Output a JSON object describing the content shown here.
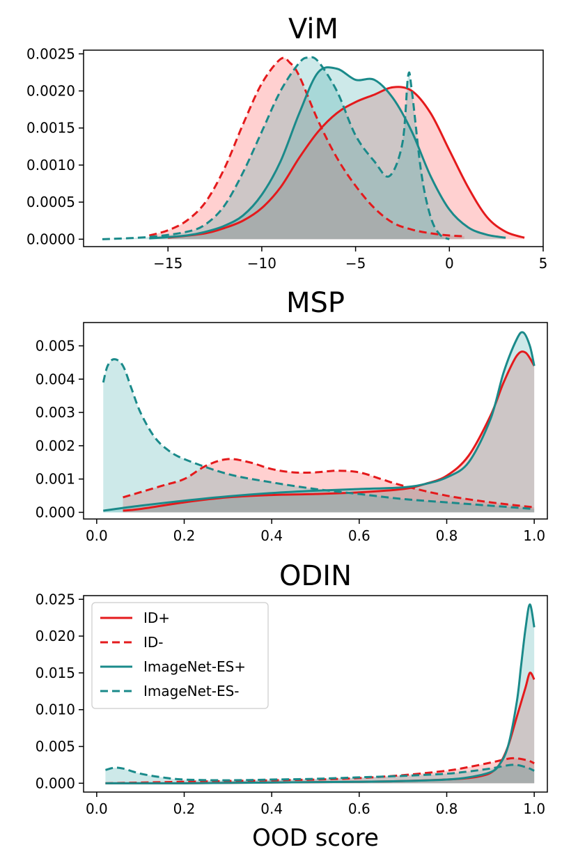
{
  "colors": {
    "id": "#e41a1c",
    "imagenet": "#1a8a8a"
  },
  "legend": [
    {
      "label": "ID+",
      "color": "#e41a1c",
      "dash": false
    },
    {
      "label": "ID-",
      "color": "#e41a1c",
      "dash": true
    },
    {
      "label": "ImageNet-ES+",
      "color": "#1a8a8a",
      "dash": false
    },
    {
      "label": "ImageNet-ES-",
      "color": "#1a8a8a",
      "dash": true
    }
  ],
  "chart_data": [
    {
      "type": "area",
      "title": "ViM",
      "xlabel": "",
      "ylabel": "",
      "xlim": [
        -19.5,
        5.0
      ],
      "ylim": [
        -0.0001,
        0.00255
      ],
      "xticks": [
        -15,
        -10,
        -5,
        0,
        5
      ],
      "xtick_labels": [
        "−15",
        "−10",
        "−5",
        "0",
        "5"
      ],
      "yticks": [
        0.0,
        0.0005,
        0.001,
        0.0015,
        0.002,
        0.0025
      ],
      "ytick_labels": [
        "0.0000",
        "0.0005",
        "0.0010",
        "0.0015",
        "0.0020",
        "0.0025"
      ],
      "series": [
        {
          "name": "ID+",
          "x": [
            -15,
            -13,
            -12,
            -11,
            -10,
            -9,
            -8,
            -7,
            -6,
            -5,
            -4,
            -3,
            -2,
            -1,
            0,
            1,
            2,
            3,
            4
          ],
          "values": [
            2e-05,
            8e-05,
            0.00015,
            0.00025,
            0.00042,
            0.0007,
            0.0011,
            0.00145,
            0.0017,
            0.00185,
            0.00195,
            0.00205,
            0.002,
            0.0017,
            0.0012,
            0.0007,
            0.0003,
            0.0001,
            2e-05
          ]
        },
        {
          "name": "ID-",
          "x": [
            -16,
            -15,
            -14,
            -13,
            -12,
            -11,
            -10,
            -9,
            -8.5,
            -8,
            -7,
            -6,
            -5,
            -4,
            -3,
            -2,
            -1,
            0,
            0.8
          ],
          "values": [
            5e-05,
            0.00012,
            0.00025,
            0.0005,
            0.00095,
            0.00155,
            0.0021,
            0.00243,
            0.00238,
            0.0022,
            0.0016,
            0.0011,
            0.00072,
            0.00042,
            0.00022,
            0.00013,
            8e-05,
            5e-05,
            4e-05
          ]
        },
        {
          "name": "ImageNet-ES+",
          "x": [
            -16,
            -14,
            -13,
            -12,
            -11,
            -10,
            -9,
            -8,
            -7,
            -6,
            -5,
            -4,
            -3,
            -2,
            -1,
            0,
            1,
            2,
            3
          ],
          "values": [
            1e-05,
            5e-05,
            0.0001,
            0.00018,
            0.00032,
            0.0006,
            0.00105,
            0.0017,
            0.00225,
            0.0023,
            0.00215,
            0.00215,
            0.0019,
            0.00145,
            0.00085,
            0.0004,
            0.00016,
            6e-05,
            2e-05
          ]
        },
        {
          "name": "ImageNet-ES-",
          "x": [
            -18.5,
            -16,
            -14,
            -13,
            -12,
            -11,
            -10,
            -9,
            -8,
            -7.5,
            -7,
            -6,
            -5,
            -4,
            -3.2,
            -2.5,
            -2.2,
            -2,
            -1.5,
            -1,
            -0.5,
            0
          ],
          "values": [
            0.0,
            3e-05,
            0.0001,
            0.0002,
            0.00045,
            0.0009,
            0.00145,
            0.002,
            0.00238,
            0.00245,
            0.0024,
            0.002,
            0.0014,
            0.00105,
            0.00085,
            0.0013,
            0.0022,
            0.002,
            0.0009,
            0.0003,
            6e-05,
            0.0
          ]
        }
      ]
    },
    {
      "type": "area",
      "title": "MSP",
      "xlabel": "",
      "ylabel": "",
      "xlim": [
        -0.03,
        1.03
      ],
      "ylim": [
        -0.0002,
        0.0057
      ],
      "xticks": [
        0.0,
        0.2,
        0.4,
        0.6,
        0.8,
        1.0
      ],
      "xtick_labels": [
        "0.0",
        "0.2",
        "0.4",
        "0.6",
        "0.8",
        "1.0"
      ],
      "yticks": [
        0.0,
        0.001,
        0.002,
        0.003,
        0.004,
        0.005
      ],
      "ytick_labels": [
        "0.000",
        "0.001",
        "0.002",
        "0.003",
        "0.004",
        "0.005"
      ],
      "series": [
        {
          "name": "ID+",
          "x": [
            0.06,
            0.1,
            0.2,
            0.3,
            0.4,
            0.5,
            0.6,
            0.7,
            0.75,
            0.8,
            0.85,
            0.9,
            0.93,
            0.96,
            0.98,
            1.0
          ],
          "values": [
            5e-05,
            0.0001,
            0.0003,
            0.00045,
            0.00052,
            0.00055,
            0.0006,
            0.0007,
            0.00085,
            0.0011,
            0.0017,
            0.0029,
            0.0039,
            0.0047,
            0.0048,
            0.0044
          ]
        },
        {
          "name": "ID-",
          "x": [
            0.06,
            0.15,
            0.2,
            0.25,
            0.3,
            0.35,
            0.4,
            0.45,
            0.5,
            0.55,
            0.6,
            0.65,
            0.7,
            0.8,
            0.9,
            1.0
          ],
          "values": [
            0.00045,
            0.0008,
            0.001,
            0.0014,
            0.0016,
            0.0015,
            0.0013,
            0.0012,
            0.0012,
            0.00125,
            0.0012,
            0.001,
            0.0008,
            0.0005,
            0.0003,
            0.00015
          ]
        },
        {
          "name": "ImageNet-ES+",
          "x": [
            0.015,
            0.1,
            0.2,
            0.3,
            0.4,
            0.5,
            0.6,
            0.7,
            0.75,
            0.8,
            0.85,
            0.9,
            0.93,
            0.96,
            0.975,
            0.99,
            1.0
          ],
          "values": [
            5e-05,
            0.0002,
            0.00035,
            0.00048,
            0.00058,
            0.00065,
            0.0007,
            0.00075,
            0.00085,
            0.00105,
            0.0015,
            0.0028,
            0.0042,
            0.0052,
            0.0054,
            0.005,
            0.0044
          ]
        },
        {
          "name": "ImageNet-ES-",
          "x": [
            0.015,
            0.025,
            0.04,
            0.06,
            0.08,
            0.1,
            0.13,
            0.16,
            0.2,
            0.3,
            0.4,
            0.5,
            0.6,
            0.7,
            0.8,
            0.9,
            1.0
          ],
          "values": [
            0.0039,
            0.0044,
            0.0046,
            0.0044,
            0.0037,
            0.003,
            0.0023,
            0.0019,
            0.0016,
            0.00115,
            0.0009,
            0.0007,
            0.00055,
            0.0004,
            0.0003,
            0.0002,
            0.0001
          ]
        }
      ]
    },
    {
      "type": "area",
      "title": "ODIN",
      "xlabel": "OOD score",
      "ylabel": "",
      "xlim": [
        -0.03,
        1.03
      ],
      "ylim": [
        -0.0012,
        0.0255
      ],
      "xticks": [
        0.0,
        0.2,
        0.4,
        0.6,
        0.8,
        1.0
      ],
      "xtick_labels": [
        "0.0",
        "0.2",
        "0.4",
        "0.6",
        "0.8",
        "1.0"
      ],
      "yticks": [
        0.0,
        0.005,
        0.01,
        0.015,
        0.02,
        0.025
      ],
      "ytick_labels": [
        "0.000",
        "0.005",
        "0.010",
        "0.015",
        "0.020",
        "0.025"
      ],
      "legend_position": "upper-left",
      "series": [
        {
          "name": "ID+",
          "x": [
            0.02,
            0.2,
            0.4,
            0.6,
            0.7,
            0.8,
            0.85,
            0.88,
            0.9,
            0.92,
            0.94,
            0.96,
            0.98,
            0.99,
            1.0
          ],
          "values": [
            0.0,
            0.0,
            0.0001,
            0.0002,
            0.0003,
            0.0005,
            0.0007,
            0.001,
            0.0014,
            0.0025,
            0.005,
            0.009,
            0.013,
            0.015,
            0.0141
          ]
        },
        {
          "name": "ID-",
          "x": [
            0.02,
            0.2,
            0.4,
            0.5,
            0.6,
            0.7,
            0.8,
            0.85,
            0.9,
            0.93,
            0.95,
            0.97,
            0.99,
            1.0
          ],
          "values": [
            0.0,
            0.0002,
            0.0004,
            0.0005,
            0.0007,
            0.0011,
            0.0017,
            0.0022,
            0.0028,
            0.0032,
            0.0034,
            0.0033,
            0.003,
            0.0027
          ]
        },
        {
          "name": "ImageNet-ES+",
          "x": [
            0.02,
            0.2,
            0.4,
            0.6,
            0.7,
            0.8,
            0.85,
            0.9,
            0.92,
            0.94,
            0.96,
            0.97,
            0.98,
            0.99,
            1.0
          ],
          "values": [
            0.0,
            0.0,
            0.0001,
            0.0002,
            0.0003,
            0.0005,
            0.0008,
            0.0015,
            0.0025,
            0.005,
            0.011,
            0.016,
            0.021,
            0.0243,
            0.0212
          ]
        },
        {
          "name": "ImageNet-ES-",
          "x": [
            0.02,
            0.04,
            0.06,
            0.1,
            0.15,
            0.2,
            0.3,
            0.4,
            0.5,
            0.6,
            0.7,
            0.8,
            0.85,
            0.9,
            0.95,
            0.98,
            1.0
          ],
          "values": [
            0.0018,
            0.0021,
            0.002,
            0.0013,
            0.0008,
            0.0005,
            0.0004,
            0.0005,
            0.0006,
            0.0008,
            0.001,
            0.0013,
            0.0016,
            0.002,
            0.0025,
            0.0022,
            0.0017
          ]
        }
      ]
    }
  ]
}
